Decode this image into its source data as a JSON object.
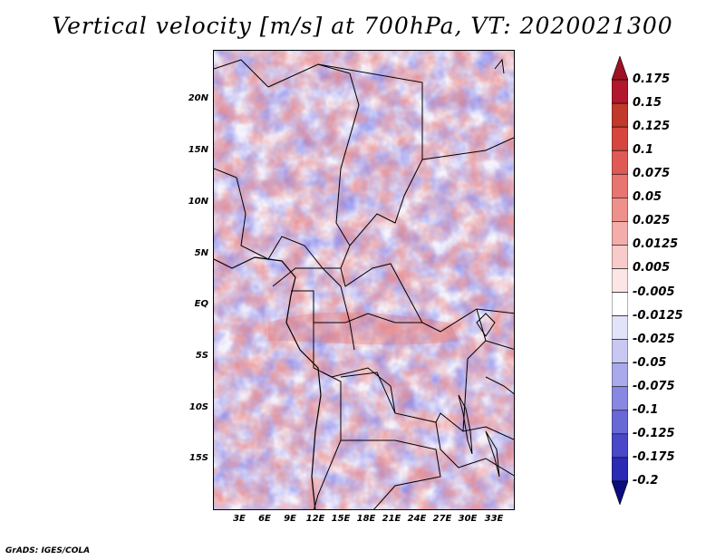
{
  "title": "Vertical velocity [m/s] at 700hPa, VT: 2020021300",
  "map": {
    "lat_labels": [
      "20N",
      "15N",
      "10N",
      "5N",
      "EQ",
      "5S",
      "10S",
      "15S"
    ],
    "lon_labels": [
      "3E",
      "6E",
      "9E",
      "12E",
      "15E",
      "18E",
      "21E",
      "24E",
      "27E",
      "30E",
      "33E"
    ]
  },
  "colorbar": {
    "labels": [
      "0.175",
      "0.15",
      "0.125",
      "0.1",
      "0.075",
      "0.05",
      "0.025",
      "0.0125",
      "0.005",
      "-0.005",
      "-0.0125",
      "-0.025",
      "-0.05",
      "-0.075",
      "-0.1",
      "-0.125",
      "-0.175",
      "-0.2"
    ],
    "colors": [
      "#b2182b",
      "#c0392b",
      "#d6463f",
      "#e05a55",
      "#e87570",
      "#ee908c",
      "#f3aeab",
      "#f7cbc9",
      "#fbe6e5",
      "#ffffff",
      "#e2e2f8",
      "#c8c8f2",
      "#a9a9ec",
      "#8888e2",
      "#6868d6",
      "#4848c8",
      "#2a2ab4",
      "#14149a"
    ]
  },
  "footer": "GrADS: IGES/COLA"
}
